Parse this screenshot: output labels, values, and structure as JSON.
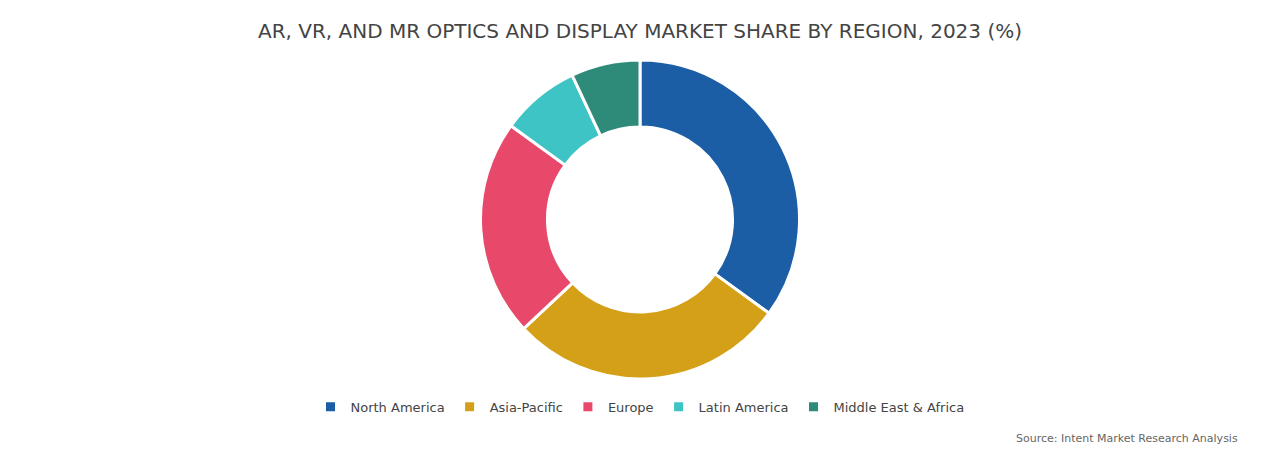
{
  "chart_data": {
    "type": "donut",
    "title": "AR, VR, AND MR OPTICS AND DISPLAY MARKET SHARE BY REGION, 2023 (%)",
    "categories": [
      "North America",
      "Asia-Pacific",
      "Europe",
      "Latin America",
      "Middle East & Africa"
    ],
    "values": [
      35,
      28,
      22,
      8,
      7
    ],
    "colors": [
      "#1b5ea6",
      "#d4a017",
      "#e8496a",
      "#3ec4c4",
      "#2e8b7a"
    ],
    "legend": "bottom",
    "annotations": [
      "Source: Intent Market Research Analysis"
    ]
  }
}
